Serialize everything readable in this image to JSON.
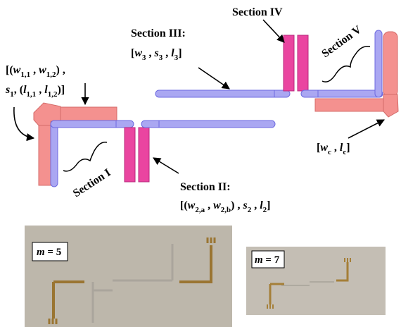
{
  "labels": {
    "section_i": "Section I",
    "section_ii": "Section II:",
    "section_iii": "Section III:",
    "section_iv": "Section IV",
    "section_v": "Section V",
    "params_i_line1": [
      "[(",
      "w",
      "1,1",
      " , ",
      "w",
      "1,2",
      ") ,"
    ],
    "params_i_line2": [
      "s",
      "1",
      ", (",
      "l",
      "1,1",
      " , ",
      "l",
      "1,2",
      ")]"
    ],
    "params_ii": [
      "[(",
      "w",
      "2,a",
      " , ",
      "w",
      "2,b",
      ") , ",
      "s",
      "2",
      " , ",
      "l",
      "2",
      "]"
    ],
    "params_iii": [
      "[",
      "w",
      "3",
      " , ",
      "s",
      "3",
      " , ",
      "l",
      "3",
      "]"
    ],
    "params_c": [
      "[",
      "w",
      "c",
      " , ",
      "l",
      "c",
      "]"
    ]
  },
  "photos": [
    {
      "m_label": [
        "m",
        " = 5"
      ]
    },
    {
      "m_label": [
        "m",
        " = 7"
      ]
    }
  ]
}
